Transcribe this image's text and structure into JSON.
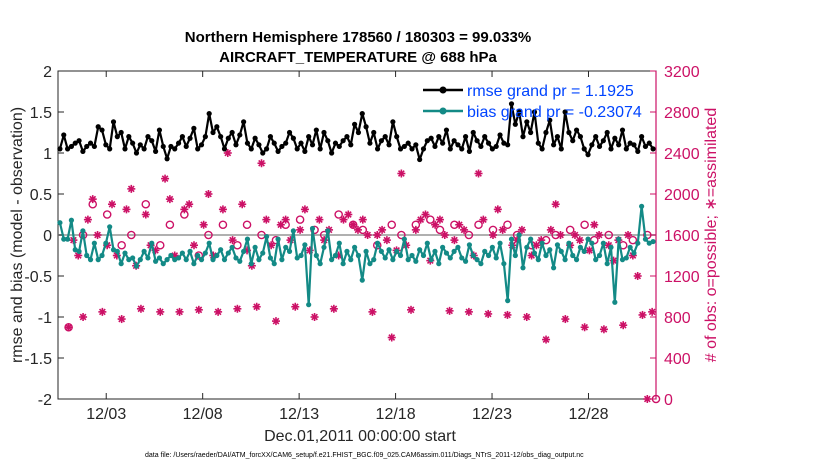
{
  "chart_data": {
    "type": "line",
    "title_line1": "Northern Hemisphere 178560 / 180303 = 99.033%",
    "title_line2": "AIRCRAFT_TEMPERATURE @ 688 hPa",
    "xlabel": "Dec.01,2011 00:00:00 start",
    "ylabel_left": "rmse and bias (model - observation)",
    "ylabel_right": "# of obs: o=possible; ∗=assimilated",
    "footer": "data file: /Users/raeder/DAI/ATM_forcXX/CAM6_setup/f.e21.FHIST_BGC.f09_025.CAM6assim.011/Diags_NTrS_2011-12/obs_diag_output.nc",
    "xlim": [
      0.5,
      31.5
    ],
    "ylim_left": [
      -2,
      2
    ],
    "ylim_right": [
      0,
      3200
    ],
    "x_ticks": [
      3,
      8,
      13,
      18,
      23,
      28
    ],
    "x_tick_labels": [
      "12/03",
      "12/08",
      "12/13",
      "12/18",
      "12/23",
      "12/28"
    ],
    "y_left_ticks": [
      -2,
      -1.5,
      -1,
      -0.5,
      0,
      0.5,
      1,
      1.5,
      2
    ],
    "y_left_tick_labels": [
      "-2",
      "-1.5",
      "-1",
      "-0.5",
      "0",
      "0.5",
      "1",
      "1.5",
      "2"
    ],
    "y_right_ticks": [
      0,
      400,
      800,
      1200,
      1600,
      2000,
      2400,
      2800,
      3200
    ],
    "y_right_tick_labels": [
      "0",
      "400",
      "800",
      "1200",
      "1600",
      "2000",
      "2400",
      "2800",
      "3200"
    ],
    "legend_location": "top-right",
    "colors": {
      "rmse": "#000000",
      "bias": "#138a86",
      "obs": "#cc1166",
      "zero_line": "#b0b0b0",
      "legend_text": "#0044ff"
    },
    "series": [
      {
        "name": "rmse grand pr = 1.1925",
        "axis": "left",
        "values": [
          1.05,
          1.22,
          1.05,
          1.08,
          1.12,
          1.15,
          1.02,
          1.08,
          1.12,
          1.08,
          1.32,
          1.28,
          1.1,
          1.05,
          1.38,
          1.2,
          1.25,
          1.05,
          1.2,
          1.12,
          1.0,
          1.1,
          1.05,
          1.2,
          1.15,
          1.02,
          1.28,
          1.08,
          0.93,
          1.08,
          1.05,
          1.12,
          1.2,
          1.08,
          1.18,
          1.3,
          1.05,
          1.1,
          1.2,
          1.48,
          1.25,
          1.32,
          1.2,
          1.05,
          1.18,
          1.25,
          1.1,
          1.22,
          1.38,
          1.12,
          1.05,
          1.18,
          1.1,
          1.0,
          1.05,
          1.2,
          1.12,
          1.02,
          1.08,
          1.12,
          1.25,
          1.18,
          1.05,
          1.12,
          1.02,
          1.2,
          1.1,
          1.28,
          1.05,
          1.25,
          1.15,
          1.0,
          1.12,
          1.08,
          1.15,
          1.2,
          1.1,
          1.35,
          1.25,
          1.48,
          1.32,
          1.12,
          1.25,
          1.05,
          1.15,
          1.2,
          1.1,
          1.38,
          1.2,
          1.05,
          1.08,
          1.12,
          1.05,
          1.1,
          0.92,
          1.05,
          1.15,
          1.18,
          1.08,
          1.2,
          1.12,
          1.28,
          1.05,
          1.15,
          1.1,
          1.05,
          1.2,
          1.02,
          1.25,
          1.15,
          1.08,
          1.2,
          1.12,
          1.05,
          1.08,
          1.22,
          1.12,
          1.1,
          1.6,
          1.35,
          1.5,
          1.2,
          1.38,
          1.25,
          1.5,
          1.12,
          1.05,
          1.25,
          1.4,
          1.1,
          1.2,
          1.05,
          1.5,
          1.25,
          1.15,
          1.28,
          1.2,
          1.05,
          0.98,
          1.1,
          1.2,
          1.08,
          1.15,
          1.25,
          1.05,
          1.18,
          1.1,
          1.28,
          1.05,
          1.12,
          1.1,
          1.02,
          1.2,
          1.08,
          1.12,
          1.05
        ],
        "marker": "dot-line"
      },
      {
        "name": "bias grand pr = -0.23074",
        "axis": "left",
        "values": [
          0.15,
          -0.05,
          -0.05,
          0.18,
          -0.18,
          -0.2,
          0.05,
          -0.25,
          -0.3,
          -0.1,
          -0.3,
          -0.25,
          -0.1,
          0.1,
          -0.18,
          -0.2,
          -0.35,
          -0.22,
          -0.3,
          -0.28,
          -0.38,
          -0.3,
          -0.2,
          -0.28,
          -0.1,
          -0.32,
          -0.28,
          -0.35,
          -0.3,
          -0.25,
          -0.3,
          -0.28,
          -0.22,
          -0.3,
          -0.2,
          -0.35,
          -0.25,
          -0.3,
          -0.22,
          -0.1,
          -0.3,
          -0.25,
          -0.18,
          -0.3,
          -0.22,
          -0.15,
          -0.28,
          -0.32,
          -0.2,
          -0.05,
          -0.35,
          -0.15,
          -0.3,
          -0.22,
          -0.02,
          -0.28,
          -0.35,
          -0.05,
          -0.3,
          -0.15,
          -0.2,
          0.05,
          -0.28,
          -0.25,
          -0.12,
          -0.85,
          0.08,
          -0.25,
          -0.35,
          -0.15,
          0.05,
          -0.3,
          -0.25,
          -0.1,
          -0.35,
          -0.2,
          -0.3,
          -0.15,
          -0.25,
          -0.55,
          -0.2,
          -0.35,
          -0.3,
          -0.1,
          -0.2,
          -0.28,
          -0.18,
          -0.3,
          -0.2,
          -0.25,
          -0.05,
          -0.3,
          -0.25,
          -0.32,
          -0.18,
          -0.25,
          -0.1,
          -0.3,
          -0.2,
          -0.35,
          -0.15,
          -0.22,
          -0.28,
          -0.2,
          -0.15,
          -0.28,
          -0.32,
          -0.12,
          -0.25,
          -0.3,
          -0.35,
          -0.2,
          -0.25,
          -0.15,
          -0.28,
          -0.1,
          -0.35,
          -0.8,
          -0.05,
          -0.25,
          0.0,
          -0.4,
          -0.15,
          -0.05,
          -0.22,
          -0.3,
          -0.1,
          -0.25,
          -0.18,
          -0.4,
          -0.12,
          -0.2,
          -0.3,
          -0.1,
          -0.25,
          -0.3,
          -0.15,
          -0.2,
          -0.05,
          -0.1,
          -0.3,
          -0.25,
          -0.1,
          -0.35,
          -0.15,
          -0.82,
          -0.05,
          -0.3,
          -0.28,
          -0.15,
          -0.22,
          -0.1,
          0.35,
          -0.05,
          -0.1,
          -0.08
        ],
        "marker": "dot-line"
      }
    ],
    "obs_possible": {
      "name": "possible",
      "axis": "right",
      "x": [
        1.05,
        1.8,
        2.3,
        3.05,
        3.8,
        4.3,
        5.05,
        5.8,
        6.3,
        7.05,
        7.8,
        8.3,
        9.05,
        9.8,
        10.3,
        11.05,
        11.8,
        12.3,
        13.05,
        13.8,
        14.3,
        15.05,
        15.8,
        16.3,
        17.05,
        17.8,
        18.3,
        19.05,
        19.8,
        20.3,
        21.05,
        21.8,
        22.3,
        23.05,
        23.8,
        24.3,
        25.05,
        25.8,
        26.3,
        27.05,
        27.8,
        28.3,
        29.05,
        29.8,
        30.3,
        31.05,
        31.5
      ],
      "values": [
        700,
        1600,
        1900,
        1800,
        1500,
        1600,
        1900,
        1500,
        1700,
        1800,
        1400,
        1600,
        1700,
        1500,
        1700,
        1600,
        1550,
        1700,
        1750,
        1650,
        1600,
        1800,
        1700,
        1650,
        1500,
        1700,
        1600,
        1700,
        1750,
        1650,
        1700,
        1600,
        1700,
        1650,
        1700,
        1600,
        1500,
        1550,
        1600,
        1650,
        1700,
        1550,
        1600,
        1500,
        1550,
        1600,
        0
      ]
    },
    "obs_assimilated": {
      "name": "assimilated",
      "axis": "right",
      "x": [
        1.05,
        1.3,
        1.55,
        1.8,
        2.05,
        2.3,
        2.55,
        2.8,
        3.05,
        3.3,
        3.55,
        3.8,
        4.05,
        4.3,
        4.55,
        4.8,
        5.05,
        5.3,
        5.55,
        5.8,
        6.05,
        6.3,
        6.55,
        6.8,
        7.05,
        7.3,
        7.55,
        7.8,
        8.05,
        8.3,
        8.55,
        8.8,
        9.05,
        9.3,
        9.55,
        9.8,
        10.05,
        10.3,
        10.55,
        10.8,
        11.05,
        11.3,
        11.55,
        11.8,
        12.05,
        12.3,
        12.55,
        12.8,
        13.05,
        13.3,
        13.55,
        13.8,
        14.05,
        14.3,
        14.55,
        14.8,
        15.05,
        15.3,
        15.55,
        15.8,
        16.05,
        16.3,
        16.55,
        16.8,
        17.05,
        17.3,
        17.55,
        17.8,
        18.05,
        18.3,
        18.55,
        18.8,
        19.05,
        19.3,
        19.55,
        19.8,
        20.05,
        20.3,
        20.55,
        20.8,
        21.05,
        21.3,
        21.55,
        21.8,
        22.05,
        22.3,
        22.55,
        22.8,
        23.05,
        23.3,
        23.55,
        23.8,
        24.05,
        24.3,
        24.55,
        24.8,
        25.05,
        25.3,
        25.55,
        25.8,
        26.05,
        26.3,
        26.55,
        26.8,
        27.05,
        27.3,
        27.55,
        27.8,
        28.05,
        28.3,
        28.55,
        28.8,
        29.05,
        29.3,
        29.55,
        29.8,
        30.05,
        30.3,
        30.55,
        30.8,
        31.05,
        31.3
      ],
      "values": [
        700,
        1550,
        1400,
        800,
        1750,
        1950,
        1600,
        850,
        1500,
        1900,
        1400,
        780,
        1850,
        2050,
        1300,
        880,
        1800,
        1500,
        1450,
        850,
        2150,
        1950,
        1400,
        850,
        1850,
        1900,
        1500,
        870,
        1700,
        2000,
        1400,
        850,
        1850,
        2400,
        1550,
        880,
        1900,
        1450,
        1300,
        900,
        2300,
        1750,
        1500,
        760,
        1700,
        1750,
        1550,
        900,
        1650,
        1850,
        1450,
        800,
        1750,
        1550,
        1650,
        880,
        1400,
        1750,
        1800,
        1700,
        1650,
        1750,
        1600,
        850,
        1600,
        1650,
        1550,
        600,
        1450,
        2200,
        1500,
        870,
        1650,
        1750,
        1800,
        1350,
        1700,
        1750,
        1600,
        860,
        1550,
        1700,
        1650,
        850,
        1400,
        2200,
        1750,
        830,
        1600,
        1850,
        1650,
        820,
        1500,
        1550,
        1650,
        800,
        1400,
        1500,
        1550,
        580,
        1650,
        1900,
        1600,
        780,
        1500,
        1600,
        1550,
        700,
        1450,
        1700,
        1600,
        680,
        1500,
        1350,
        1550,
        720,
        1600,
        1400,
        1200,
        820,
        0,
        850
      ]
    }
  }
}
